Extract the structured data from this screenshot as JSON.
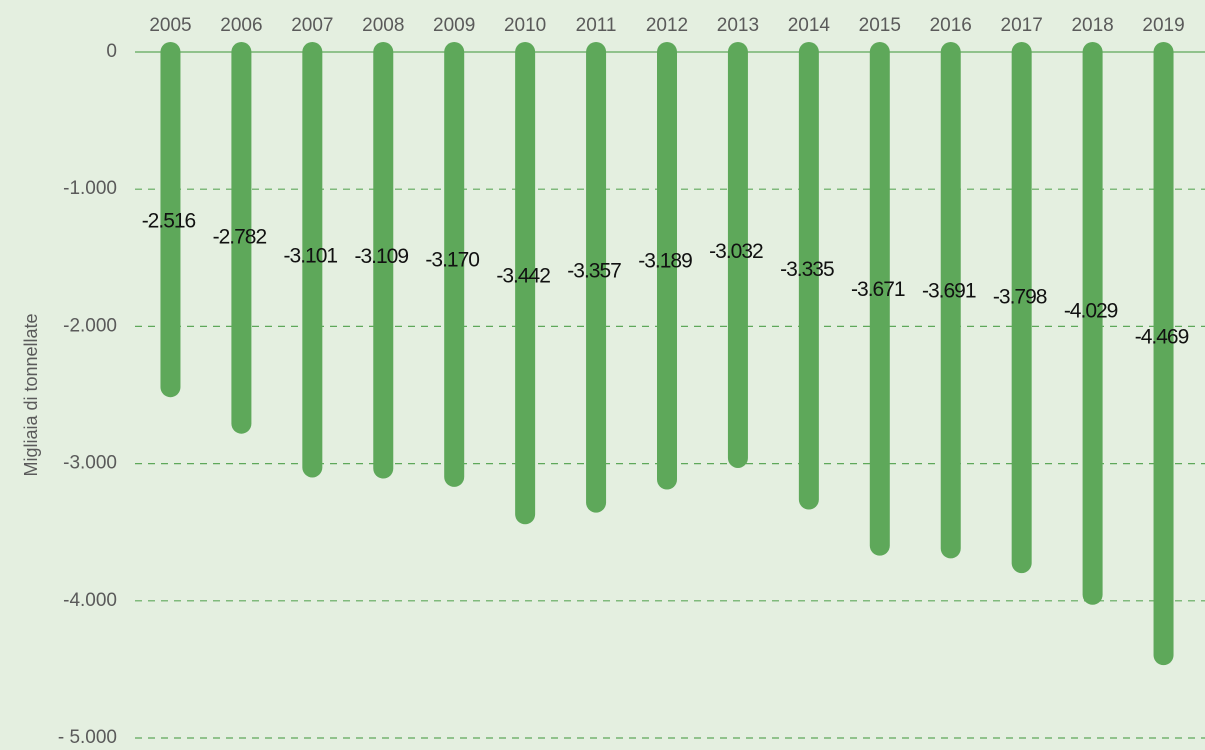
{
  "chart_data": {
    "type": "bar",
    "y_label": "Migliaia di tonnellate",
    "categories": [
      "2005",
      "2006",
      "2007",
      "2008",
      "2009",
      "2010",
      "2011",
      "2012",
      "2013",
      "2014",
      "2015",
      "2016",
      "2017",
      "2018",
      "2019"
    ],
    "values": [
      -2516,
      -2782,
      -3101,
      -3109,
      -3170,
      -3442,
      -3357,
      -3189,
      -3032,
      -3335,
      -3671,
      -3691,
      -3798,
      -4029,
      -4469
    ],
    "value_labels": [
      "-2.516",
      "-2.782",
      "-3.101",
      "-3.109",
      "-3.170",
      "-3.442",
      "-3.357",
      "-3.189",
      "-3.032",
      "-3.335",
      "-3.671",
      "-3.691",
      "-3.798",
      "-4.029",
      "-4.469"
    ],
    "color": "#5ea85a",
    "ylim": [
      -5000,
      0
    ],
    "yticks": [
      0,
      {
        "value": -1000,
        "label": "-1.000"
      },
      {
        "value": -2000,
        "label": "-2.000"
      },
      {
        "value": -3000,
        "label": "-3.000"
      },
      {
        "value": -4000,
        "label": "-4.000"
      },
      {
        "value": -5000,
        "label": "- 5.000"
      }
    ],
    "grid": true
  }
}
